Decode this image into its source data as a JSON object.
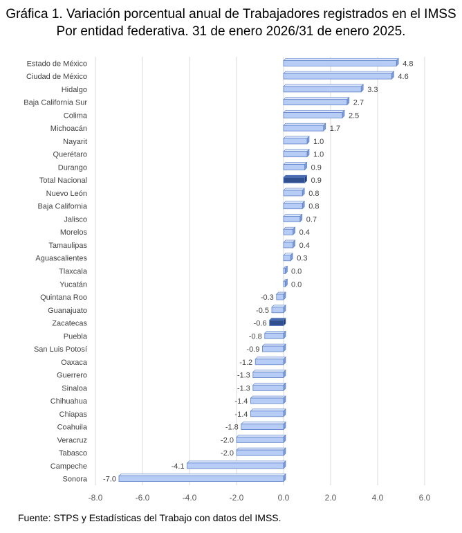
{
  "title_line1": "Gráfica 1. Variación porcentual anual de Trabajadores registrados en el IMSS",
  "title_line2": "Por entidad federativa. 31 de enero 2026/31 de enero 2025.",
  "source": "Fuente: STPS y Estadísticas del Trabajo con datos del IMSS.",
  "colors": {
    "bar_fill": "#b8cdf5",
    "bar_highlight": "#2f4f8f",
    "bar_edge": "#5a7fc8",
    "grid": "#d9d9d9",
    "text": "#595959",
    "label_text": "#404040"
  },
  "chart_data": {
    "type": "bar",
    "orientation": "horizontal",
    "title": "Gráfica 1. Variación porcentual anual de Trabajadores registrados en el IMSS Por entidad federativa. 31 de enero 2026/31 de enero 2025.",
    "xlabel": "",
    "ylabel": "",
    "xlim": [
      -8.0,
      6.0
    ],
    "xticks": [
      "-8.0",
      "-6.0",
      "-4.0",
      "-2.0",
      "0.0",
      "2.0",
      "4.0",
      "6.0"
    ],
    "grid": true,
    "categories": [
      "Estado de México",
      "Ciudad de México",
      "Hidalgo",
      "Baja California Sur",
      "Colima",
      "Michoacán",
      "Nayarit",
      "Querétaro",
      "Durango",
      "Total Nacional",
      "Nuevo León",
      "Baja California",
      "Jalisco",
      "Morelos",
      "Tamaulipas",
      "Aguascalientes",
      "Tlaxcala",
      "Yucatán",
      "Quintana Roo",
      "Guanajuato",
      "Zacatecas",
      "Puebla",
      "San Luis Potosí",
      "Oaxaca",
      "Guerrero",
      "Sinaloa",
      "Chihuahua",
      "Chiapas",
      "Coahuila",
      "Veracruz",
      "Tabasco",
      "Campeche",
      "Sonora"
    ],
    "values": [
      4.8,
      4.6,
      3.3,
      2.7,
      2.5,
      1.7,
      1.0,
      1.0,
      0.9,
      0.9,
      0.8,
      0.8,
      0.7,
      0.4,
      0.4,
      0.3,
      0.0,
      0.0,
      -0.3,
      -0.5,
      -0.6,
      -0.8,
      -0.9,
      -1.2,
      -1.3,
      -1.3,
      -1.4,
      -1.4,
      -1.8,
      -2.0,
      -2.0,
      -4.1,
      -7.0
    ],
    "value_labels": [
      "4.8",
      "4.6",
      "3.3",
      "2.7",
      "2.5",
      "1.7",
      "1.0",
      "1.0",
      "0.9",
      "0.9",
      "0.8",
      "0.8",
      "0.7",
      "0.4",
      "0.4",
      "0.3",
      "0.0",
      "0.0",
      "-0.3",
      "-0.5",
      "-0.6",
      "-0.8",
      "-0.9",
      "-1.2",
      "-1.3",
      "-1.3",
      "-1.4",
      "-1.4",
      "-1.8",
      "-2.0",
      "-2.0",
      "-4.1",
      "-7.0"
    ],
    "highlighted": [
      "Total Nacional",
      "Zacatecas"
    ]
  }
}
